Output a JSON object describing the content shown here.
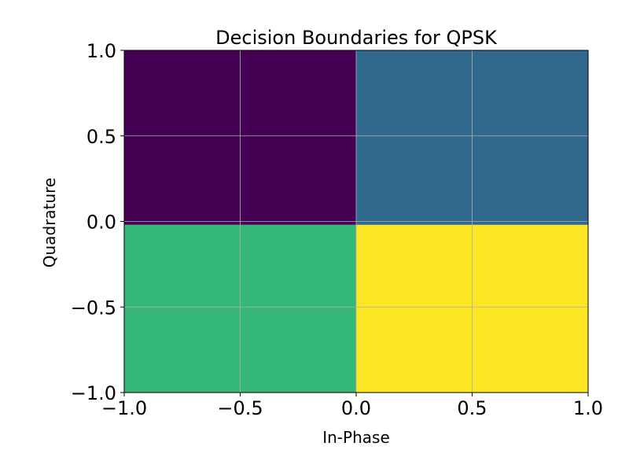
{
  "chart_data": {
    "type": "heatmap",
    "title": "Decision Boundaries for QPSK",
    "xlabel": "In-Phase",
    "ylabel": "Quadrature",
    "xlim": [
      -1.0,
      1.0
    ],
    "ylim": [
      -1.0,
      1.0
    ],
    "xticks": [
      -1.0,
      -0.5,
      0.0,
      0.5,
      1.0
    ],
    "yticks": [
      -1.0,
      -0.5,
      0.0,
      0.5,
      1.0
    ],
    "xtick_labels": [
      "−1.0",
      "−0.5",
      "0.0",
      "0.5",
      "1.0"
    ],
    "ytick_labels": [
      "−1.0",
      "−0.5",
      "0.0",
      "0.5",
      "1.0"
    ],
    "grid": true,
    "regions": [
      {
        "quadrant": "upper-left",
        "x_range": [
          -1.0,
          0.0
        ],
        "y_range": [
          0.0,
          1.0
        ],
        "color": "#440154"
      },
      {
        "quadrant": "upper-right",
        "x_range": [
          0.0,
          1.0
        ],
        "y_range": [
          0.0,
          1.0
        ],
        "color": "#31688e"
      },
      {
        "quadrant": "lower-left",
        "x_range": [
          -1.0,
          0.0
        ],
        "y_range": [
          -1.0,
          0.0
        ],
        "color": "#35b779"
      },
      {
        "quadrant": "lower-right",
        "x_range": [
          0.0,
          1.0
        ],
        "y_range": [
          -1.0,
          0.0
        ],
        "color": "#fde725"
      }
    ],
    "boundary_y": -0.02,
    "boundary_x": 0.0
  }
}
